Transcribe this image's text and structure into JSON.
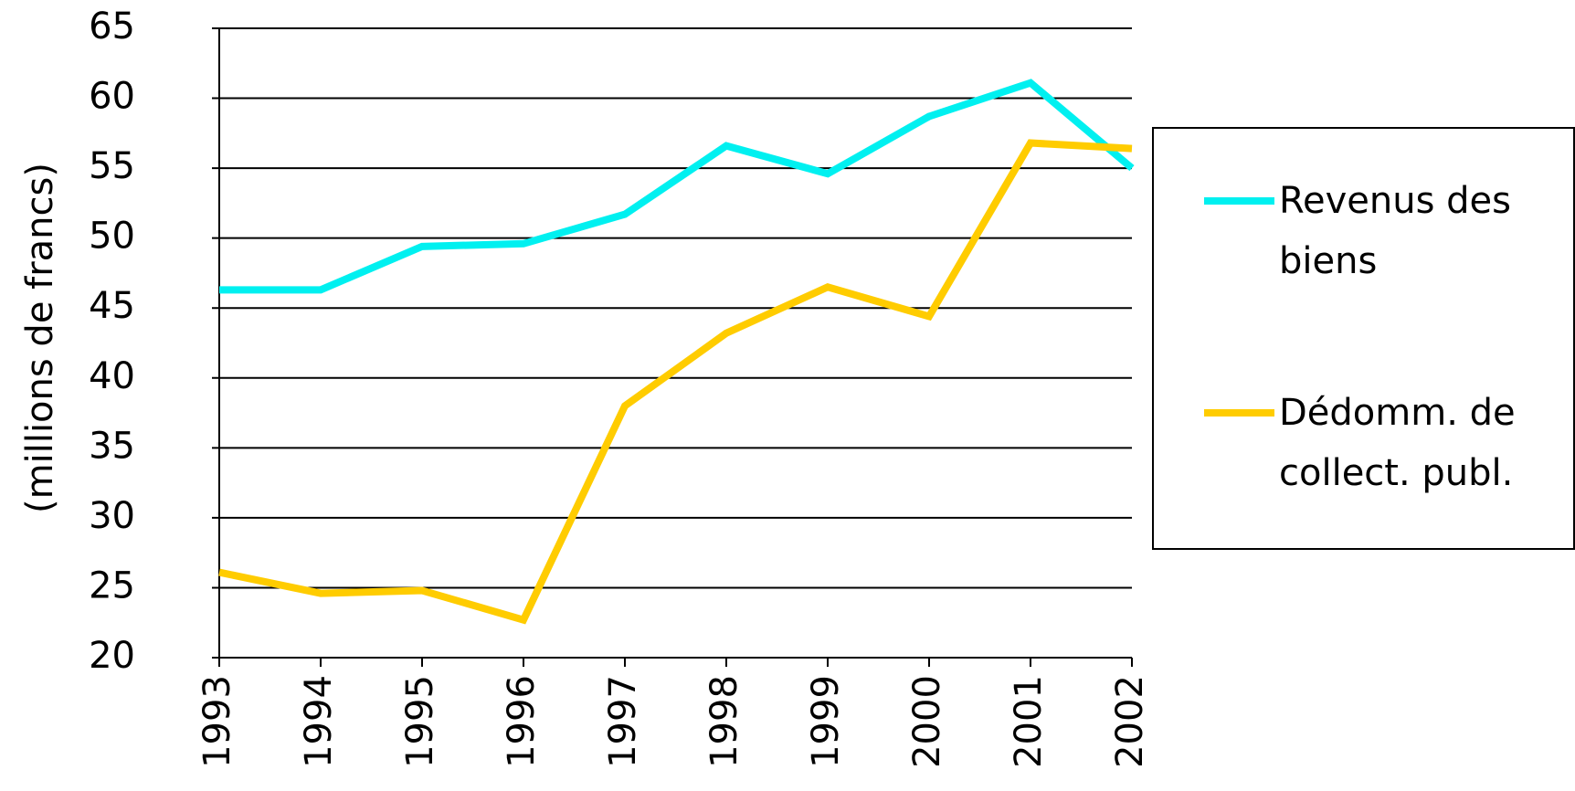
{
  "chart_data": {
    "type": "line",
    "y_label": "(millions de francs)",
    "categories": [
      "1993",
      "1994",
      "1995",
      "1996",
      "1997",
      "1998",
      "1999",
      "2000",
      "2001",
      "2002"
    ],
    "series": [
      {
        "name": "Revenus des biens",
        "color": "#00f0f0",
        "values": [
          46.3,
          46.3,
          49.4,
          49.6,
          51.7,
          56.6,
          54.6,
          58.7,
          61.1,
          55.0
        ]
      },
      {
        "name": "Dédomm. de collect. publ.",
        "color": "#ffcc00",
        "values": [
          26.1,
          24.6,
          24.8,
          22.7,
          38.0,
          43.2,
          46.5,
          44.4,
          56.8,
          56.4
        ]
      }
    ],
    "ylim": [
      20,
      65
    ],
    "yticks": [
      20,
      25,
      30,
      35,
      40,
      45,
      50,
      55,
      60,
      65
    ],
    "grid": true,
    "legend": "right"
  }
}
